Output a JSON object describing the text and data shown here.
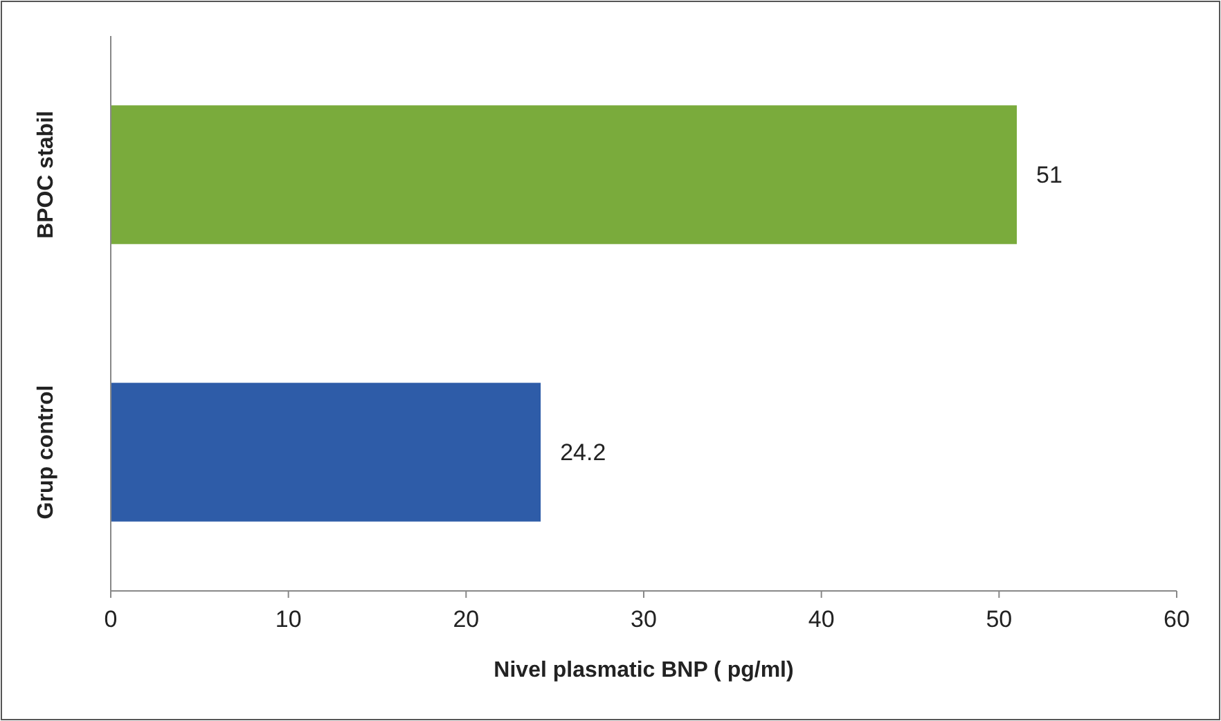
{
  "chart_data": {
    "type": "bar",
    "orientation": "horizontal",
    "xlabel": "Nivel plasmatic BNP ( pg/ml)",
    "categories": [
      "BPOC stabil",
      "Grup control"
    ],
    "values": [
      51,
      24.2
    ],
    "colors": [
      "#7aab3c",
      "#2e5ca8"
    ],
    "xlim": [
      0,
      60
    ],
    "xticks": [
      0,
      10,
      20,
      30,
      40,
      50,
      60
    ],
    "data_labels": true,
    "grid": false
  }
}
